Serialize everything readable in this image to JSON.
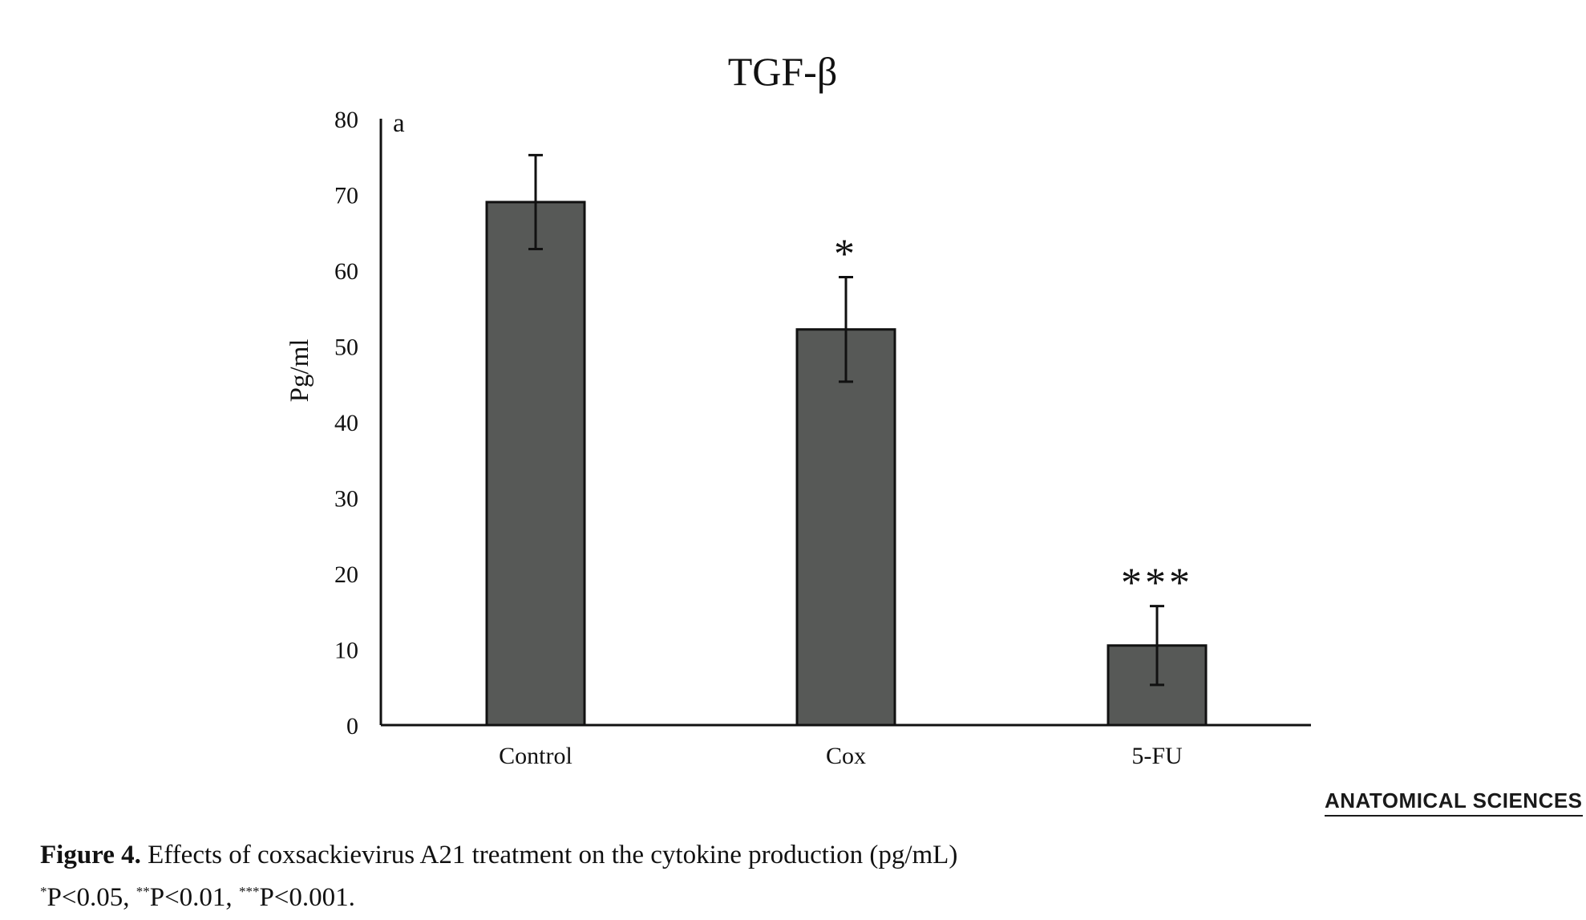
{
  "chart_data": {
    "type": "bar",
    "title": "TGF-β",
    "panel_label": "a",
    "ylabel": "Pg/ml",
    "xlabel": "",
    "categories": [
      "Control",
      "Cox",
      "5-FU"
    ],
    "values": [
      69,
      52.2,
      10.5
    ],
    "error": [
      6.2,
      6.9,
      5.2
    ],
    "significance": [
      "",
      "*",
      "***"
    ],
    "ylim": [
      0,
      80
    ],
    "yticks": [
      0,
      10,
      20,
      30,
      40,
      50,
      60,
      70,
      80
    ],
    "grid": false,
    "legend": "none",
    "colors": {
      "bar_fill": "#575957",
      "bar_stroke": "#111111",
      "axis": "#111111"
    }
  },
  "brand": "ANATOMICAL SCIENCES",
  "caption": {
    "figure_label": "Figure 4.",
    "text": "Effects of coxsackievirus A21 treatment on the cytokine production (pg/mL)",
    "footnote_marks": [
      "*",
      "**",
      "***"
    ],
    "footnote_values": [
      "P<0.05, ",
      "P<0.01, ",
      "P<0.001."
    ]
  }
}
